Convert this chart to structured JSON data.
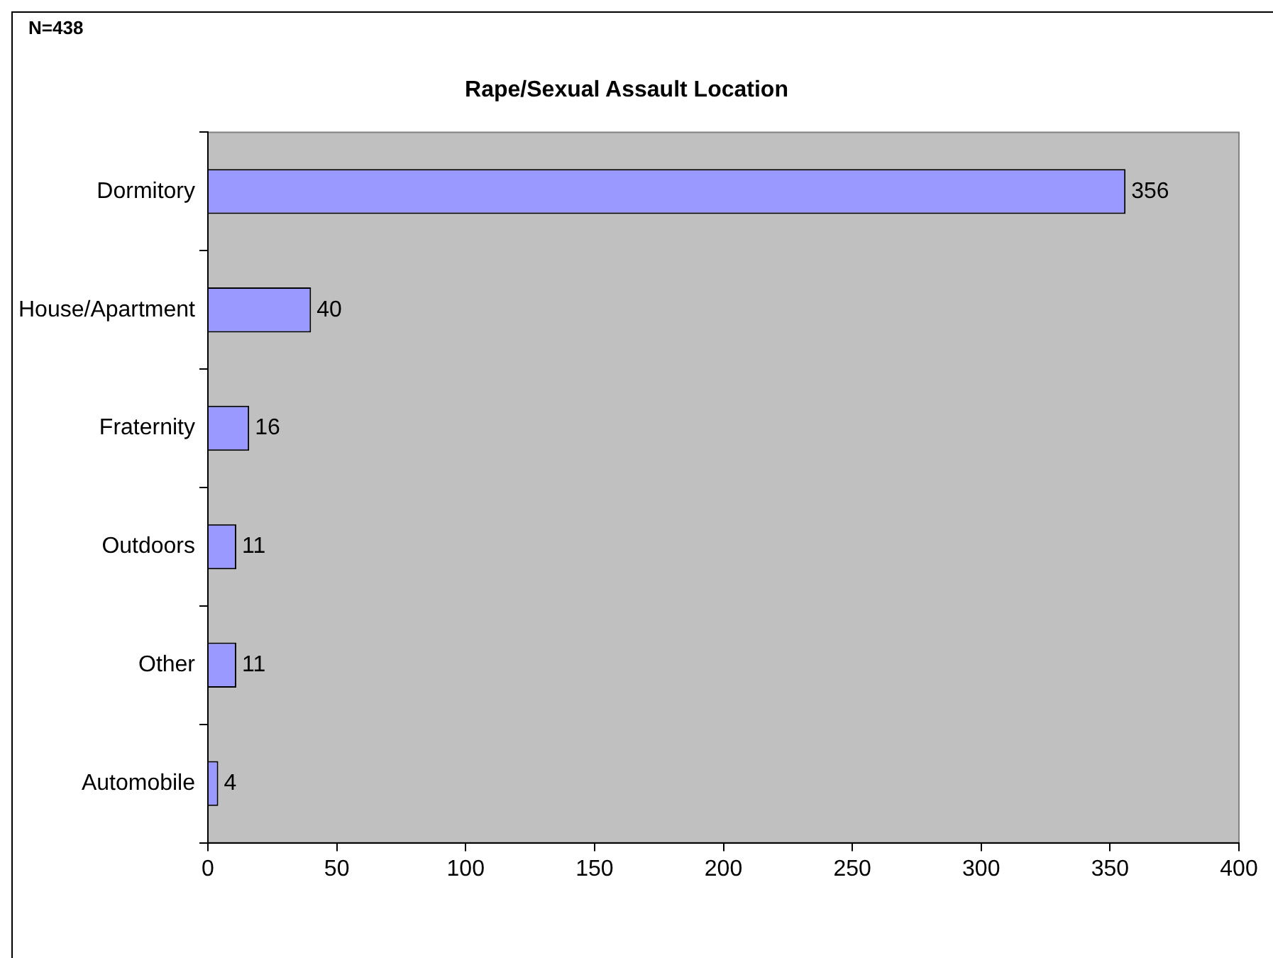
{
  "chart_data": {
    "type": "bar",
    "orientation": "horizontal",
    "title": "Rape/Sexual Assault Location",
    "annotations": [
      "N=438"
    ],
    "categories": [
      "Dormitory",
      "House/Apartment",
      "Fraternity",
      "Outdoors",
      "Other",
      "Automobile"
    ],
    "values": [
      356,
      40,
      16,
      11,
      11,
      4
    ],
    "color": "#9999ff",
    "xlim": [
      0,
      400
    ],
    "xticks": [
      0,
      50,
      100,
      150,
      200,
      250,
      300,
      350,
      400
    ],
    "data_labels": true,
    "legend": false
  }
}
